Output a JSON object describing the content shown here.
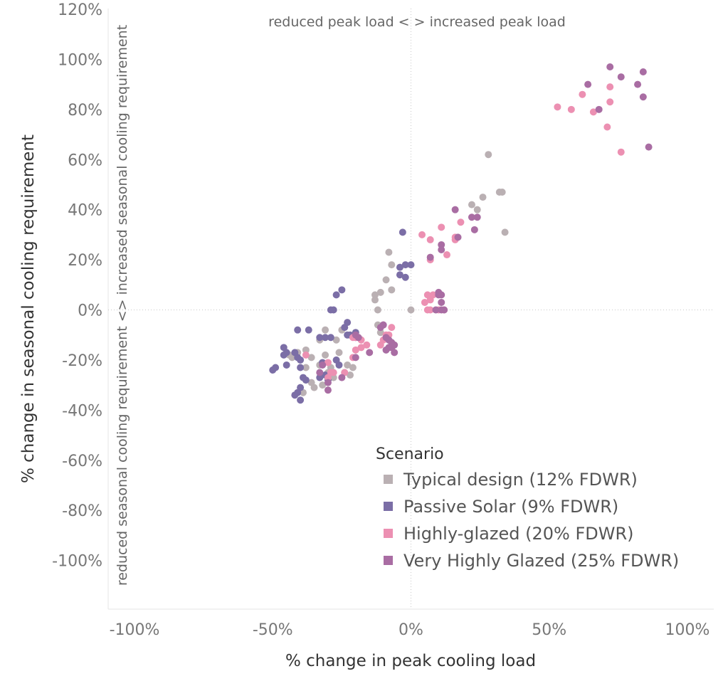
{
  "chart_data": {
    "type": "scatter",
    "xlabel": "% change in peak cooling load",
    "ylabel": "% change in seasonal cooling requirement",
    "xlim": [
      -100,
      100
    ],
    "ylim": [
      -120,
      120
    ],
    "x_ticks": [
      {
        "value": -100,
        "label": "-100%"
      },
      {
        "value": -50,
        "label": "-50%"
      },
      {
        "value": 0,
        "label": "0%"
      },
      {
        "value": 50,
        "label": "50%"
      },
      {
        "value": 100,
        "label": "100%"
      }
    ],
    "y_ticks": [
      {
        "value": 120,
        "label": "120%"
      },
      {
        "value": 100,
        "label": "100%"
      },
      {
        "value": 80,
        "label": "80%"
      },
      {
        "value": 60,
        "label": "60%"
      },
      {
        "value": 40,
        "label": "40%"
      },
      {
        "value": 20,
        "label": "20%"
      },
      {
        "value": 0,
        "label": "0%"
      },
      {
        "value": -20,
        "label": "-20%"
      },
      {
        "value": -40,
        "label": "-40%"
      },
      {
        "value": -60,
        "label": "-60%"
      },
      {
        "value": -80,
        "label": "-80%"
      },
      {
        "value": -100,
        "label": "-100%"
      }
    ],
    "quadrant_labels": {
      "top": "reduced peak load <  > increased peak load",
      "left": "reduced seasonal cooling requirement <> increased seasonal cooling requirement"
    },
    "grid": false,
    "zero_lines": true,
    "legend": {
      "title": "Scenario",
      "placement": "bottom-right"
    },
    "series": [
      {
        "name": "Typical design (12% FDWR)",
        "color": "#bab0b3",
        "points": [
          [
            28,
            62
          ],
          [
            26,
            45
          ],
          [
            24,
            40
          ],
          [
            22,
            42
          ],
          [
            32,
            47
          ],
          [
            33,
            47
          ],
          [
            34,
            31
          ],
          [
            -8,
            23
          ],
          [
            -7,
            18
          ],
          [
            -9,
            12
          ],
          [
            -13,
            6
          ],
          [
            -11,
            7
          ],
          [
            -13,
            4
          ],
          [
            -12,
            0
          ],
          [
            -7,
            8
          ],
          [
            0,
            0
          ],
          [
            -12,
            -6
          ],
          [
            -11,
            -9
          ],
          [
            -9,
            -11
          ],
          [
            -35,
            -31
          ],
          [
            -36,
            -19
          ],
          [
            -31,
            -8
          ],
          [
            -33,
            -12
          ],
          [
            -27,
            -12
          ],
          [
            -25,
            -8
          ],
          [
            -41,
            -17
          ],
          [
            -43,
            -19
          ],
          [
            -44,
            -18
          ],
          [
            -38,
            -16
          ],
          [
            -38,
            -23
          ],
          [
            -33,
            -22
          ],
          [
            -31,
            -18
          ],
          [
            -29,
            -23
          ],
          [
            -26,
            -17
          ],
          [
            -24,
            -25
          ],
          [
            -23,
            -22
          ],
          [
            -22,
            -26
          ],
          [
            -21,
            -23
          ],
          [
            -36,
            -29
          ],
          [
            -32,
            -30
          ],
          [
            -39,
            -33
          ],
          [
            -30,
            -25
          ],
          [
            -28,
            -27
          ]
        ]
      },
      {
        "name": "Passive Solar (9% FDWR)",
        "color": "#7b6ea6",
        "points": [
          [
            -3,
            31
          ],
          [
            -27,
            6
          ],
          [
            -25,
            8
          ],
          [
            -29,
            0
          ],
          [
            -28,
            0
          ],
          [
            -4,
            17
          ],
          [
            -2,
            18
          ],
          [
            0,
            18
          ],
          [
            -2,
            13
          ],
          [
            -4,
            14
          ],
          [
            -49,
            -23
          ],
          [
            -50,
            -24
          ],
          [
            -45,
            -22
          ],
          [
            -46,
            -18
          ],
          [
            -45,
            -17
          ],
          [
            -42,
            -17
          ],
          [
            -41,
            -19
          ],
          [
            -46,
            -15
          ],
          [
            -40,
            -20
          ],
          [
            -41,
            -8
          ],
          [
            -37,
            -8
          ],
          [
            -40,
            -23
          ],
          [
            -39,
            -27
          ],
          [
            -38,
            -28
          ],
          [
            -40,
            -31
          ],
          [
            -41,
            -33
          ],
          [
            -42,
            -34
          ],
          [
            -40,
            -36
          ],
          [
            -32,
            -21
          ],
          [
            -31,
            -26
          ],
          [
            -33,
            -27
          ],
          [
            -30,
            -28
          ],
          [
            -33,
            -11
          ],
          [
            -31,
            -11
          ],
          [
            -29,
            -11
          ],
          [
            -27,
            -20
          ],
          [
            -26,
            -22
          ],
          [
            -24,
            -7
          ],
          [
            -23,
            -5
          ],
          [
            -22,
            -10
          ],
          [
            -20,
            -9
          ],
          [
            -20,
            -11
          ],
          [
            -23,
            -10
          ]
        ]
      },
      {
        "name": "Highly-glazed (20% FDWR)",
        "color": "#ec90b2",
        "points": [
          [
            53,
            81
          ],
          [
            58,
            80
          ],
          [
            62,
            86
          ],
          [
            66,
            79
          ],
          [
            71,
            73
          ],
          [
            72,
            83
          ],
          [
            72,
            89
          ],
          [
            76,
            63
          ],
          [
            4,
            30
          ],
          [
            7,
            28
          ],
          [
            11,
            33
          ],
          [
            7,
            20
          ],
          [
            13,
            22
          ],
          [
            16,
            29
          ],
          [
            18,
            35
          ],
          [
            16,
            28
          ],
          [
            5,
            3
          ],
          [
            7,
            4
          ],
          [
            6,
            6
          ],
          [
            7,
            5
          ],
          [
            8,
            6
          ],
          [
            6,
            0
          ],
          [
            7,
            0
          ],
          [
            10,
            0
          ],
          [
            12,
            0
          ],
          [
            -10,
            -12
          ],
          [
            -11,
            -14
          ],
          [
            -9,
            -10
          ],
          [
            -8,
            -10
          ],
          [
            -7,
            -7
          ],
          [
            -16,
            -14
          ],
          [
            -18,
            -15
          ],
          [
            -21,
            -11
          ],
          [
            -20,
            -11
          ],
          [
            -18,
            -12
          ],
          [
            -20,
            -16
          ],
          [
            -28,
            -25
          ],
          [
            -30,
            -27
          ],
          [
            -29,
            -25
          ],
          [
            -24,
            -25
          ],
          [
            -38,
            -18
          ],
          [
            -30,
            -21
          ],
          [
            -21,
            -19
          ]
        ]
      },
      {
        "name": "Very Highly Glazed (25% FDWR)",
        "color": "#a96da3",
        "points": [
          [
            72,
            97
          ],
          [
            76,
            93
          ],
          [
            84,
            95
          ],
          [
            82,
            90
          ],
          [
            84,
            85
          ],
          [
            64,
            90
          ],
          [
            68,
            80
          ],
          [
            86,
            65
          ],
          [
            16,
            40
          ],
          [
            22,
            37
          ],
          [
            24,
            37
          ],
          [
            23,
            32
          ],
          [
            17,
            29
          ],
          [
            11,
            26
          ],
          [
            11,
            24
          ],
          [
            7,
            21
          ],
          [
            10,
            7
          ],
          [
            10,
            6
          ],
          [
            11,
            6
          ],
          [
            11,
            3
          ],
          [
            9,
            0
          ],
          [
            11,
            0
          ],
          [
            12,
            0
          ],
          [
            -10,
            -6
          ],
          [
            -11,
            -7
          ],
          [
            -9,
            -11
          ],
          [
            -7,
            -13
          ],
          [
            -8,
            -15
          ],
          [
            -7,
            -15
          ],
          [
            -6,
            -17
          ],
          [
            -15,
            -17
          ],
          [
            -20,
            -10
          ],
          [
            -19,
            -11
          ],
          [
            -20,
            -19
          ],
          [
            -25,
            -27
          ],
          [
            -30,
            -29
          ],
          [
            -30,
            -32
          ],
          [
            -33,
            -25
          ],
          [
            -32,
            -22
          ],
          [
            -10,
            -6
          ],
          [
            -8,
            -12
          ],
          [
            -6,
            -14
          ],
          [
            -9,
            -16
          ]
        ]
      }
    ]
  }
}
